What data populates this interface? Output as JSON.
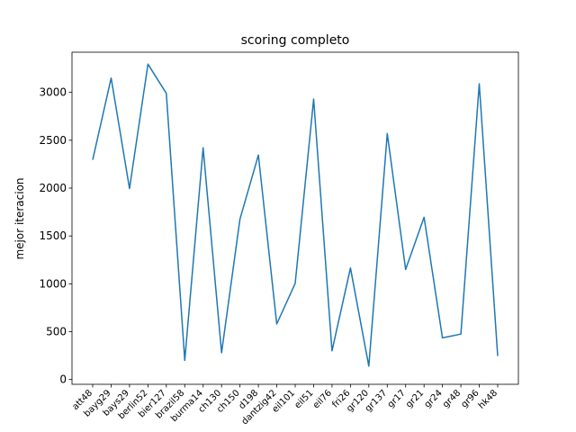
{
  "chart_data": {
    "type": "line",
    "title": "scoring completo",
    "xlabel": "",
    "ylabel": "mejor iteracion",
    "categories": [
      "att48",
      "bayg29",
      "bays29",
      "berlin52",
      "bier127",
      "brazil58",
      "burma14",
      "ch130",
      "ch150",
      "d198",
      "dantzig42",
      "eil101",
      "eil51",
      "eil76",
      "fri26",
      "gr120",
      "gr137",
      "gr17",
      "gr21",
      "gr24",
      "gr48",
      "gr96",
      "hk48"
    ],
    "series": [
      {
        "values": [
          2295,
          3150,
          1995,
          3295,
          2990,
          200,
          2420,
          280,
          1675,
          2345,
          580,
          1005,
          2930,
          300,
          1165,
          140,
          2570,
          1150,
          1695,
          435,
          475,
          3090,
          245
        ],
        "color": "#1f77b4"
      }
    ],
    "ylim": [
      -50,
      3420
    ],
    "yticks": [
      0,
      500,
      1000,
      1500,
      2000,
      2500,
      3000
    ],
    "grid": false,
    "legend": "none"
  }
}
